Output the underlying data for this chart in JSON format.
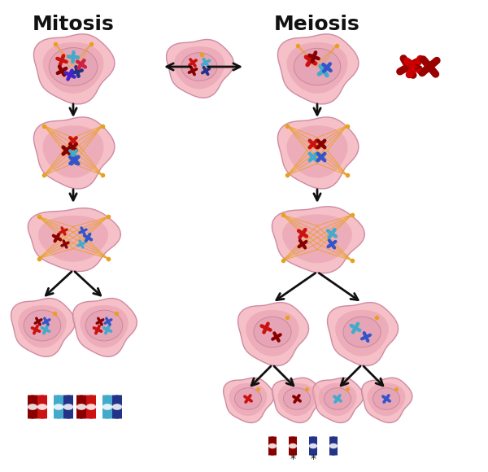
{
  "title_mitosis": "Mitosis",
  "title_meiosis": "Meiosis",
  "bg_color": "#ffffff",
  "cell_outer_color": "#f4b8c1",
  "cell_outer_alpha": 0.85,
  "cell_inner_color": "#e8a0b0",
  "cell_inner_alpha": 0.6,
  "nucleus_color": "#d8889a",
  "nucleus_alpha": 0.5,
  "spindle_color": "#e8a020",
  "chr_red": "#cc1111",
  "chr_darkred": "#880000",
  "chr_blue": "#3355cc",
  "chr_lightblue": "#44aacc",
  "chr_darkblue": "#223388",
  "arrow_color": "#111111",
  "title_fontsize": 18,
  "label_fontsize": 10
}
